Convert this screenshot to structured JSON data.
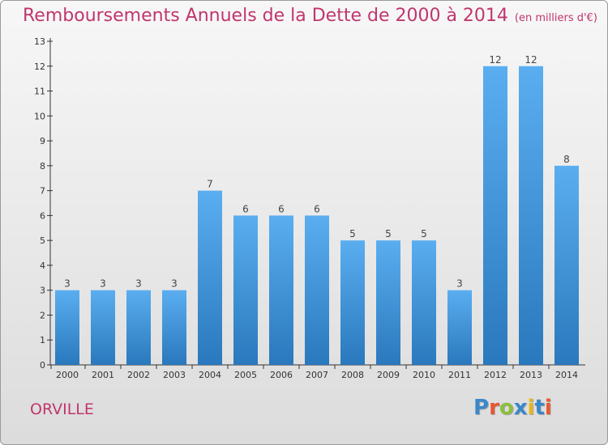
{
  "header": {
    "title": "Remboursements Annuels de la Dette de 2000 à 2014",
    "unit": "(en milliers d'€)"
  },
  "footer": {
    "place": "ORVILLE",
    "logo_text": "Proxiti",
    "logo_colors": [
      "#3a87c9",
      "#e8572e",
      "#8cbf3f",
      "#3a87c9",
      "#e8b51c",
      "#3a87c9",
      "#e8572e"
    ]
  },
  "colors": {
    "title": "#c0366e",
    "bar_light": "#5aaef0",
    "bar_dark": "#2a78bd"
  },
  "chart_data": {
    "type": "bar",
    "title": "Remboursements Annuels de la Dette de 2000 à 2014",
    "subtitle": "(en milliers d'€)",
    "categories": [
      "2000",
      "2001",
      "2002",
      "2003",
      "2004",
      "2005",
      "2006",
      "2007",
      "2008",
      "2009",
      "2010",
      "2011",
      "2012",
      "2013",
      "2014"
    ],
    "values": [
      3,
      3,
      3,
      3,
      7,
      6,
      6,
      6,
      5,
      5,
      5,
      3,
      12,
      12,
      8
    ],
    "data_labels": [
      "3",
      "3",
      "3",
      "3",
      "7",
      "6",
      "6",
      "6",
      "5",
      "5",
      "5",
      "3",
      "12",
      "12",
      "8"
    ],
    "y_ticks": [
      "0",
      "1",
      "2",
      "3",
      "4",
      "5",
      "6",
      "7",
      "8",
      "9",
      "10",
      "11",
      "12",
      "13"
    ],
    "ylim": [
      0,
      13
    ],
    "grid": false,
    "legend": "none"
  }
}
